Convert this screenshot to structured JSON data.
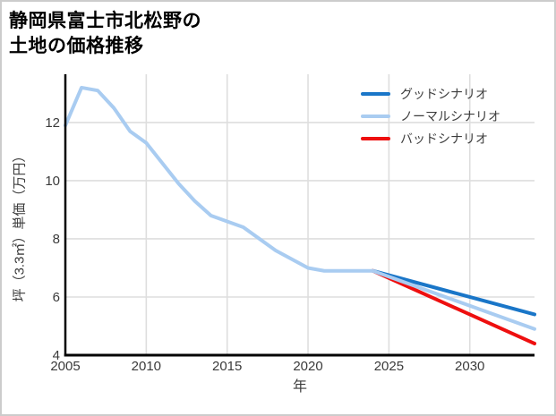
{
  "figure": {
    "title_line1": "静岡県富士市北松野の",
    "title_line2": "土地の価格推移"
  },
  "chart_data": {
    "type": "line",
    "title": "静岡県富士市北松野の土地の価格推移",
    "xlabel": "年",
    "ylabel": "坪（3.3㎡）単価（万円）",
    "xlim": [
      2005,
      2034
    ],
    "ylim": [
      4,
      13.66
    ],
    "x_ticks": [
      2005,
      2010,
      2015,
      2020,
      2025,
      2030
    ],
    "y_ticks": [
      4,
      6,
      8,
      10,
      12
    ],
    "grid": true,
    "legend_position": "top-right",
    "colors": {
      "good_scenario": "#1a76c8",
      "normal_scenario": "#a9ccf1",
      "bad_scenario": "#ee0f0f",
      "gridline": "#dedede",
      "axis_line": "#000000",
      "tick_text": "#3b3b3b"
    },
    "series": [
      {
        "name": "グッドシナリオ",
        "color": "#1a76c8",
        "x": [
          2024,
          2034
        ],
        "values": [
          6.9,
          5.4
        ]
      },
      {
        "name": "ノーマルシナリオ",
        "color": "#a9ccf1",
        "x": [
          2005,
          2006,
          2007,
          2008,
          2009,
          2010,
          2011,
          2012,
          2013,
          2014,
          2015,
          2016,
          2017,
          2018,
          2019,
          2020,
          2021,
          2022,
          2023,
          2024,
          2034
        ],
        "values": [
          11.9,
          13.2,
          13.1,
          12.5,
          11.7,
          11.3,
          10.6,
          9.9,
          9.3,
          8.8,
          8.6,
          8.4,
          8.0,
          7.6,
          7.3,
          7.0,
          6.9,
          6.9,
          6.9,
          6.9,
          4.9
        ]
      },
      {
        "name": "バッドシナリオ",
        "color": "#ee0f0f",
        "x": [
          2024,
          2034
        ],
        "values": [
          6.9,
          4.4
        ]
      }
    ]
  }
}
